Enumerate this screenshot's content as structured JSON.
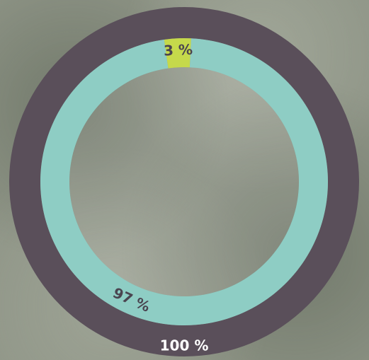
{
  "chart_data": {
    "type": "donut",
    "rings": [
      {
        "values": [
          100
        ],
        "value_labels": [
          "100 %"
        ],
        "colors": [
          "#5a4f5a"
        ]
      },
      {
        "values": [
          3,
          97
        ],
        "value_labels": [
          "3 %",
          "97 %"
        ],
        "colors": [
          "#c5d94b",
          "#8ecdc4"
        ]
      }
    ]
  }
}
